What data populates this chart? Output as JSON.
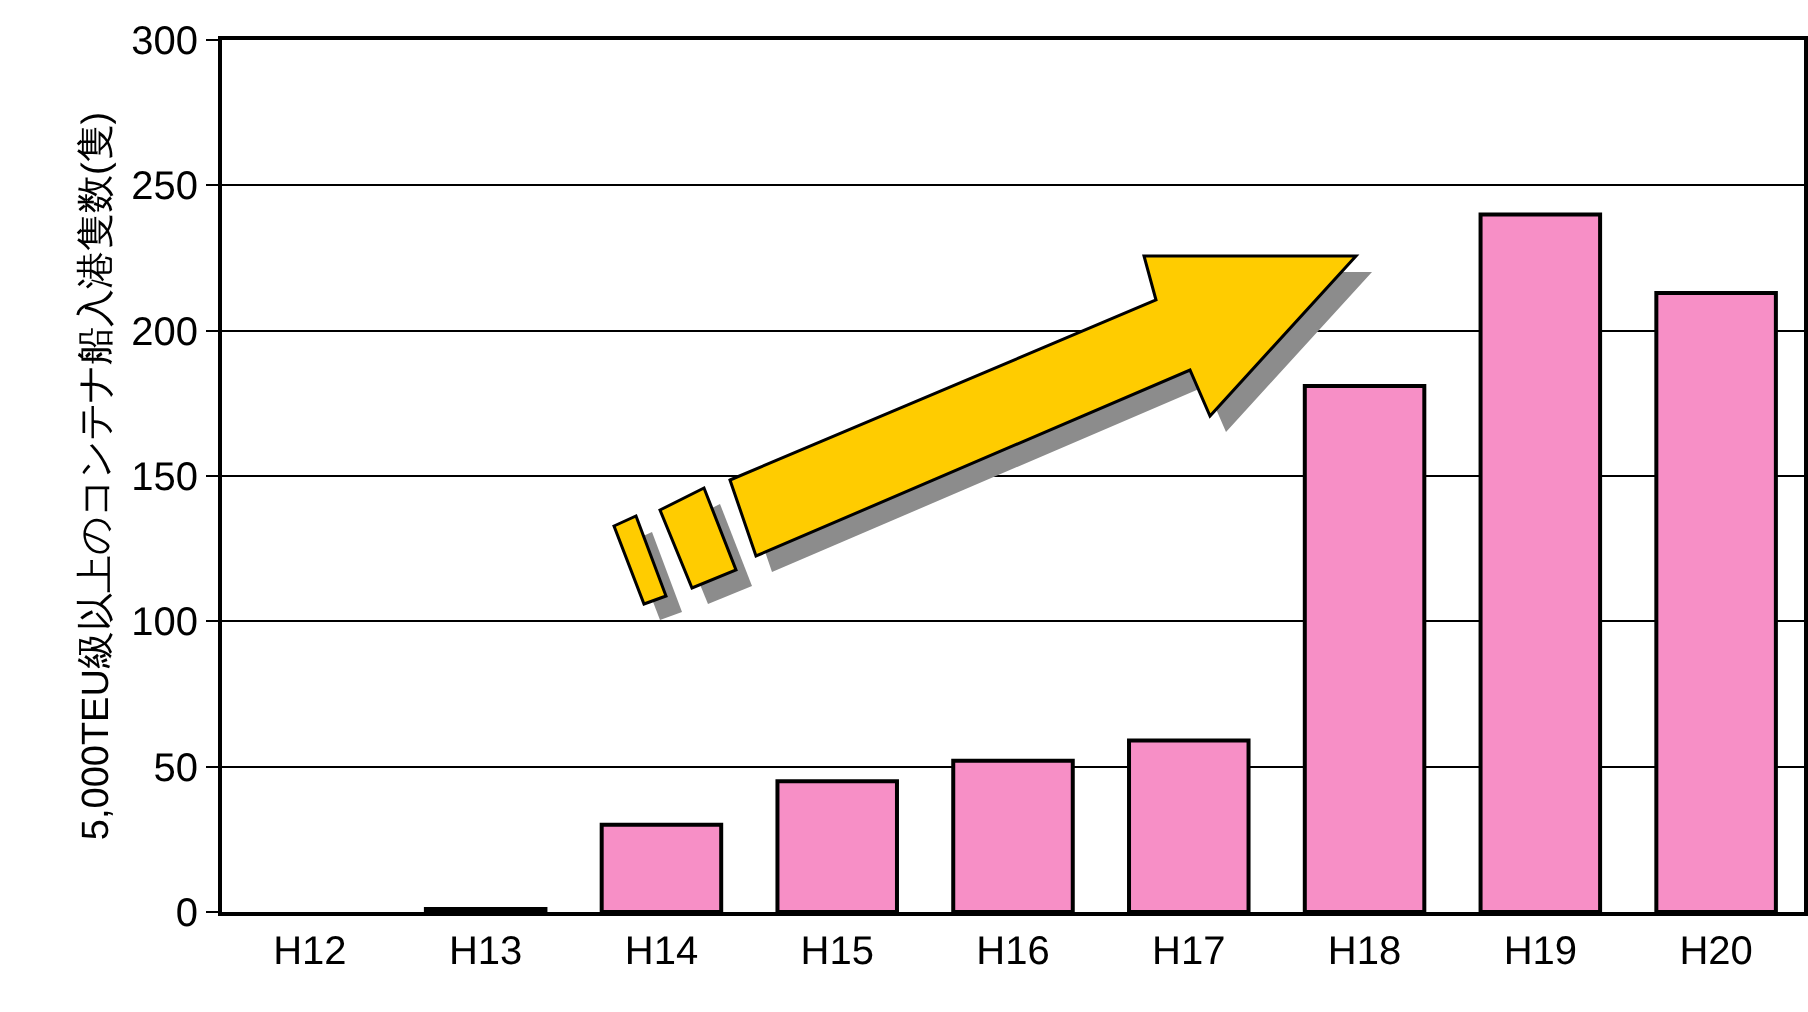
{
  "chart_data": {
    "type": "bar",
    "ylabel": "5,000TEU級以上のコンテナ船入港隻数(隻)",
    "categories": [
      "H12",
      "H13",
      "H14",
      "H15",
      "H16",
      "H17",
      "H18",
      "H19",
      "H20"
    ],
    "values": [
      0,
      1,
      30,
      45,
      52,
      59,
      181,
      240,
      213
    ],
    "color": "#f78fc6",
    "ylim": [
      0,
      300
    ],
    "yticks": [
      0,
      50,
      100,
      150,
      200,
      250,
      300
    ],
    "grid": "y",
    "legend": false
  }
}
